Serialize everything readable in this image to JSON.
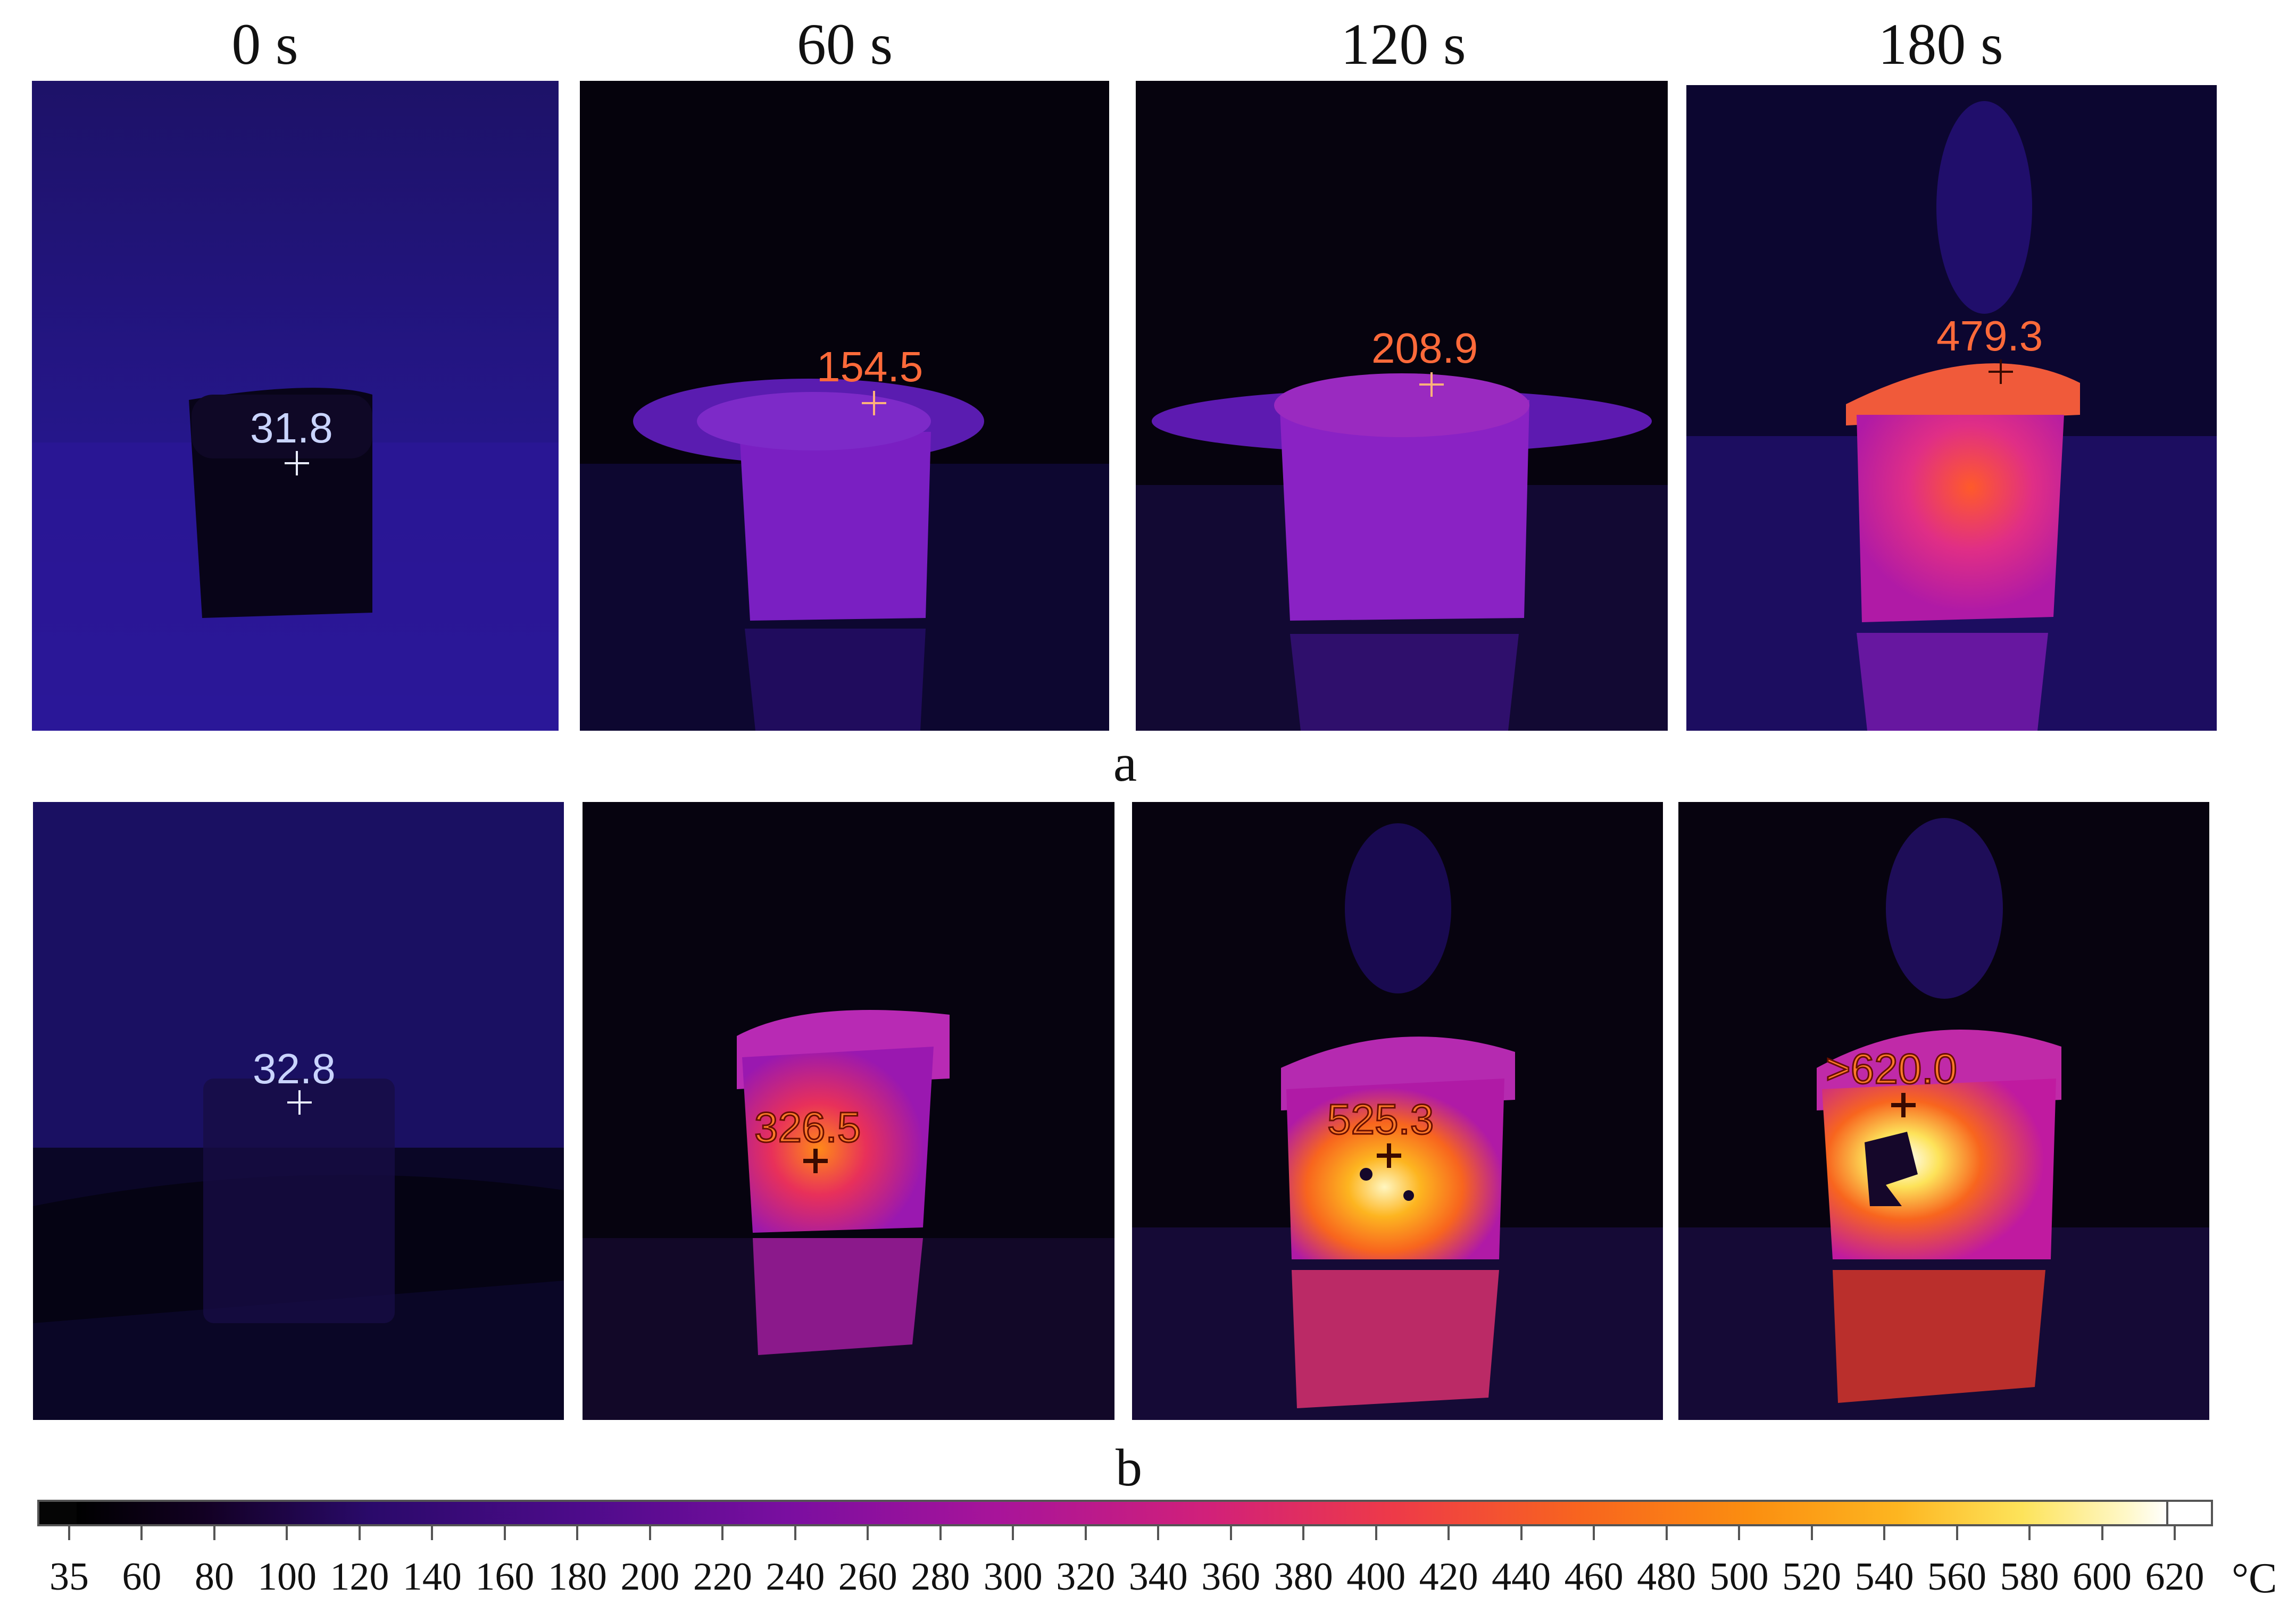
{
  "time_labels": [
    "0 s",
    "60 s",
    "120 s",
    "180 s"
  ],
  "row_labels": {
    "a": "a",
    "b": "b"
  },
  "rows": {
    "a": [
      {
        "reading": "31.8",
        "scheme": "cool"
      },
      {
        "reading": "154.5",
        "scheme": "hot"
      },
      {
        "reading": "208.9",
        "scheme": "hot"
      },
      {
        "reading": "479.3",
        "scheme": "hot"
      }
    ],
    "b": [
      {
        "reading": "32.8",
        "scheme": "cool"
      },
      {
        "reading": "326.5",
        "scheme": "outlined"
      },
      {
        "reading": "525.3",
        "scheme": "outlined"
      },
      {
        "reading": ">620.0",
        "scheme": "outlined"
      }
    ]
  },
  "colorbar": {
    "unit": "°C",
    "tick_labels": [
      "35",
      "60",
      "80",
      "100",
      "120",
      "140",
      "160",
      "180",
      "200",
      "220",
      "240",
      "260",
      "280",
      "300",
      "320",
      "340",
      "360",
      "380",
      "400",
      "420",
      "440",
      "460",
      "480",
      "500",
      "520",
      "540",
      "560",
      "580",
      "600",
      "620"
    ]
  },
  "colors": {
    "background_dark": "#1a0f55",
    "background_black": "#07030f",
    "warm_mid": "#b01aa6",
    "hot": "#ff7a1c",
    "hottest": "#fff6c0"
  }
}
